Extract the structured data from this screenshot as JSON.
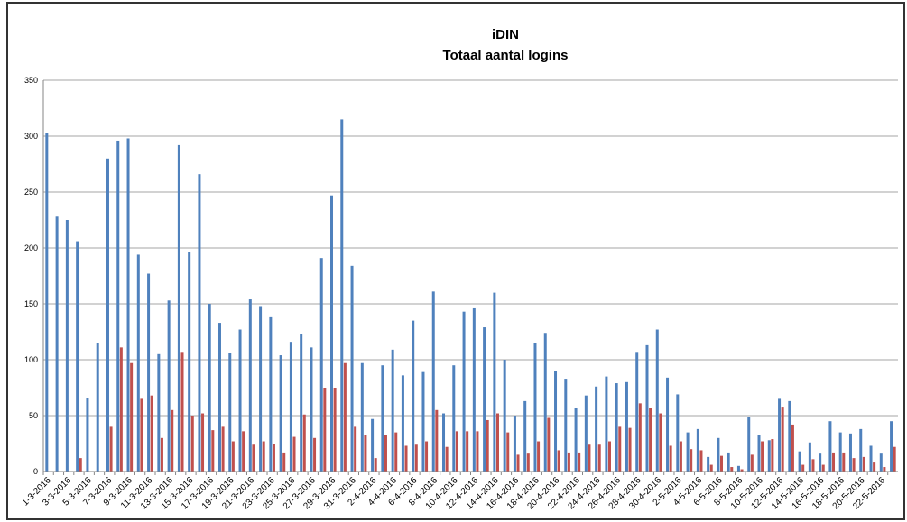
{
  "chart_data": {
    "type": "bar",
    "title": "iDIN",
    "subtitle": "Totaal aantal logins",
    "categories": [
      "1-3-2016",
      null,
      "3-3-2016",
      null,
      "5-3-2016",
      null,
      "7-3-2016",
      null,
      "9-3-2016",
      null,
      "11-3-2016",
      null,
      "13-3-2016",
      null,
      "15-3-2016",
      null,
      "17-3-2016",
      null,
      "19-3-2016",
      null,
      "21-3-2016",
      null,
      "23-3-2016",
      null,
      "25-3-2016",
      null,
      "27-3-2016",
      null,
      "29-3-2016",
      null,
      "31-3-2016",
      null,
      "2-4-2016",
      null,
      "4-4-2016",
      null,
      "6-4-2016",
      null,
      "8-4-2016",
      null,
      "10-4-2016",
      null,
      "12-4-2016",
      null,
      "14-4-2016",
      null,
      "16-4-2016",
      null,
      "18-4-2016",
      null,
      "20-4-2016",
      null,
      "22-4-2016",
      null,
      "24-4-2016",
      null,
      "26-4-2016",
      null,
      "28-4-2016",
      null,
      "30-4-2016",
      null,
      "2-5-2016",
      null,
      "4-5-2016",
      null,
      "6-5-2016",
      null,
      "8-5-2016",
      null,
      "10-5-2016",
      null,
      "12-5-2016",
      null,
      "14-5-2016",
      null,
      "16-5-2016",
      null,
      "18-5-2016",
      null,
      "20-5-2016",
      null,
      "22-5-2016",
      null
    ],
    "series": [
      {
        "color": "#4f81bd",
        "values": [
          303,
          228,
          225,
          206,
          66,
          115,
          280,
          296,
          298,
          194,
          177,
          105,
          153,
          292,
          196,
          266,
          150,
          133,
          106,
          127,
          154,
          148,
          138,
          104,
          116,
          123,
          111,
          191,
          247,
          315,
          184,
          97,
          47,
          95,
          109,
          86,
          135,
          89,
          161,
          52,
          95,
          143,
          146,
          129,
          160,
          100,
          50,
          63,
          115,
          124,
          90,
          83,
          57,
          68,
          76,
          85,
          79,
          80,
          107,
          113,
          127,
          84,
          69,
          35,
          38,
          13,
          30,
          17,
          5,
          49,
          33,
          28,
          65,
          63,
          18,
          26,
          16,
          45,
          35,
          34,
          38,
          23,
          16,
          45
        ]
      },
      {
        "color": "#c0504d",
        "values": [
          0,
          0,
          0,
          12,
          0,
          0,
          40,
          111,
          97,
          65,
          68,
          30,
          55,
          107,
          50,
          52,
          37,
          40,
          27,
          36,
          24,
          27,
          25,
          17,
          31,
          51,
          30,
          75,
          75,
          97,
          40,
          33,
          12,
          33,
          35,
          23,
          24,
          27,
          55,
          22,
          36,
          36,
          36,
          46,
          52,
          35,
          15,
          16,
          27,
          48,
          19,
          17,
          17,
          24,
          24,
          27,
          40,
          39,
          61,
          57,
          52,
          23,
          27,
          20,
          19,
          6,
          14,
          4,
          2,
          15,
          27,
          29,
          58,
          42,
          6,
          11,
          6,
          17,
          17,
          12,
          13,
          8,
          4,
          22
        ]
      }
    ],
    "ylim": [
      0,
      350
    ],
    "yticks": [
      0,
      50,
      100,
      150,
      200,
      250,
      300,
      350
    ],
    "grid": true
  }
}
